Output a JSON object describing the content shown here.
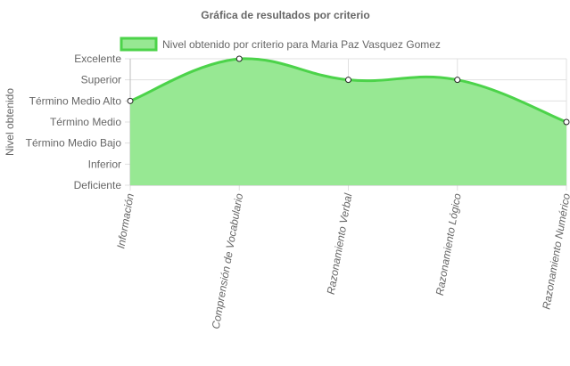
{
  "colors": {
    "fill": "#97e893",
    "line": "#4cd34a",
    "point_fill": "#ffffff",
    "point_stroke": "#222222",
    "text": "#666666"
  },
  "chart_data": {
    "type": "area",
    "title": "Gráfica de resultados por criterio",
    "ylabel": "Nivel obtenido",
    "xlabel": "",
    "legend": "top",
    "grid": true,
    "categories": [
      "Información",
      "Comprensión de Vocabulario",
      "Razonamiento Verbal",
      "Razonamiento Lógico",
      "Razonamiento Numérico"
    ],
    "y_levels": [
      "Deficiente",
      "Inferior",
      "Término Medio Bajo",
      "Término Medio",
      "Término Medio Alto",
      "Superior",
      "Excelente"
    ],
    "ylim": [
      0,
      6
    ],
    "series": [
      {
        "name": "Nivel obtenido por criterio para Maria Paz Vasquez Gomez",
        "values": [
          4,
          6,
          5,
          5,
          3
        ]
      }
    ]
  }
}
